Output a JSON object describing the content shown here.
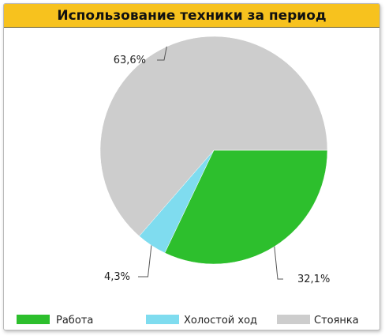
{
  "panel": {
    "title": "Использование техники за период"
  },
  "chart_data": {
    "type": "pie",
    "title": "",
    "slices": [
      {
        "name": "Работа",
        "value": 32.1,
        "label": "32,1%",
        "color": "#2dbf2d"
      },
      {
        "name": "Холостой ход",
        "value": 4.3,
        "label": "4,3%",
        "color": "#7fdcef"
      },
      {
        "name": "Стоянка",
        "value": 63.6,
        "label": "63,6%",
        "color": "#cdcdcd"
      }
    ],
    "start": "3 o'clock, clockwise",
    "legend_position": "bottom"
  }
}
